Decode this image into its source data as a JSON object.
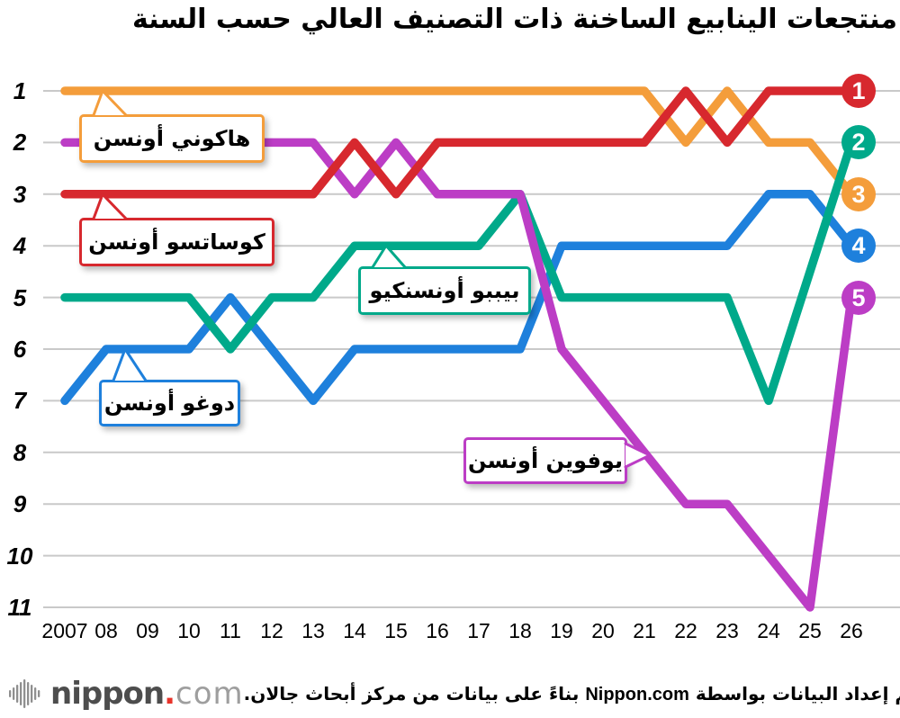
{
  "title": "منتجعات الينابيع الساخنة ذات التصنيف العالي حسب السنة",
  "footer": {
    "part1": "تم إعداد البيانات بواسطة",
    "brand": "Nippon.com",
    "part2": "بناءً على بيانات من مركز أبحاث جالان.",
    "logo": {
      "icon": "soundwave-bars-icon",
      "word": "nippon",
      "dot": ".",
      "tld": "com"
    }
  },
  "chart_data": {
    "type": "line",
    "subtype": "bump-chart-ranking",
    "x": [
      2007,
      2008,
      2009,
      2010,
      2011,
      2012,
      2013,
      2014,
      2015,
      2016,
      2017,
      2018,
      2019,
      2020,
      2021,
      2022,
      2023,
      2024,
      2025,
      2026
    ],
    "x_tick_labels": [
      "2007",
      "08",
      "09",
      "10",
      "11",
      "12",
      "13",
      "14",
      "15",
      "16",
      "17",
      "18",
      "19",
      "20",
      "21",
      "22",
      "23",
      "24",
      "25",
      "26"
    ],
    "y_ticks": [
      1,
      2,
      3,
      4,
      5,
      6,
      7,
      8,
      9,
      10,
      11
    ],
    "y_axis_inverted": true,
    "grid": true,
    "grid_color": "#c9c9c9",
    "legend_position": "inline-callouts",
    "series": [
      {
        "name": "هاكوني أونسن",
        "color": "#F49D3B",
        "values": [
          1,
          1,
          1,
          1,
          1,
          1,
          1,
          1,
          1,
          1,
          1,
          1,
          1,
          1,
          1,
          2,
          1,
          2,
          2,
          3
        ]
      },
      {
        "name": "دوغو أونسن",
        "color": "#1E80DC",
        "values": [
          7,
          6,
          6,
          6,
          5,
          6,
          7,
          6,
          6,
          6,
          6,
          6,
          4,
          4,
          4,
          4,
          4,
          3,
          3,
          4
        ]
      },
      {
        "name": "بيببو أونسنكيو",
        "color": "#00A98A",
        "values": [
          5,
          5,
          5,
          5,
          6,
          5,
          5,
          4,
          4,
          4,
          4,
          3,
          5,
          5,
          5,
          5,
          5,
          7,
          null,
          2
        ]
      },
      {
        "name": "يوفوين أونسن",
        "color": "#BC3DC5",
        "values": [
          2,
          2,
          2,
          2,
          2,
          2,
          2,
          3,
          2,
          3,
          3,
          3,
          6,
          7,
          8,
          9,
          9,
          10,
          11,
          5
        ]
      },
      {
        "name": "كوساتسو أونسن",
        "color": "#D7282E",
        "values": [
          3,
          3,
          3,
          3,
          3,
          3,
          3,
          2,
          3,
          2,
          2,
          2,
          2,
          2,
          2,
          1,
          2,
          1,
          1,
          1
        ]
      }
    ],
    "end_badges": [
      {
        "label": "1",
        "rank": 1,
        "series": "كوساتسو أونسن",
        "color": "#D7282E"
      },
      {
        "label": "2",
        "rank": 2,
        "series": "بيببو أونسنكيو",
        "color": "#00A98A"
      },
      {
        "label": "3",
        "rank": 3,
        "series": "هاكوني أونسن",
        "color": "#F49D3B"
      },
      {
        "label": "4",
        "rank": 4,
        "series": "دوغو أونسن",
        "color": "#1E80DC"
      },
      {
        "label": "5",
        "rank": 5,
        "series": "يوفوين أونسن",
        "color": "#BC3DC5"
      }
    ],
    "annotations": [
      {
        "text": "هاكوني أونسن",
        "color": "#F49D3B",
        "series": "هاكوني أونسن"
      },
      {
        "text": "كوساتسو أونسن",
        "color": "#D7282E",
        "series": "كوساتسو أونسن"
      },
      {
        "text": "بيببو أونسنكيو",
        "color": "#00A98A",
        "series": "بيببو أونسنكيو"
      },
      {
        "text": "دوغو أونسن",
        "color": "#1E80DC",
        "series": "دوغو أونسن"
      },
      {
        "text": "يوفوين أونسن",
        "color": "#BC3DC5",
        "series": "يوفوين أونسن"
      }
    ]
  }
}
